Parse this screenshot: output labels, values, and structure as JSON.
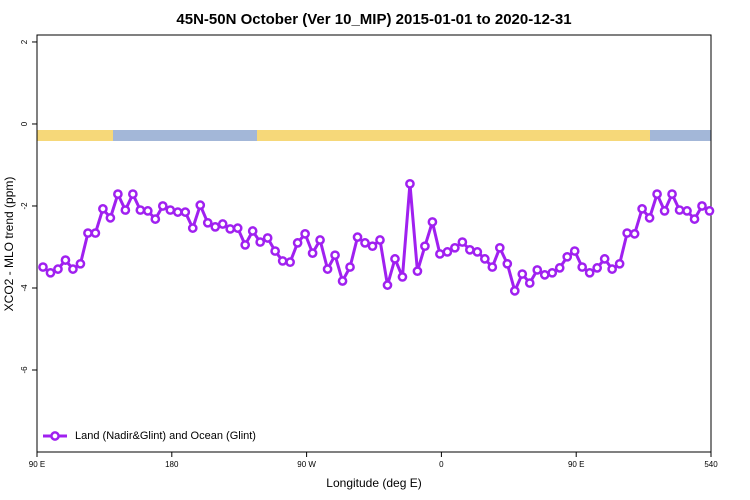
{
  "chart_data": {
    "type": "line",
    "title": "45N-50N October (Ver 10_MIP)   2015-01-01 to 2020-12-31",
    "x_label": "Longitude (deg E)",
    "y_label": "XCO2 - MLO trend (ppm)",
    "x": [
      94,
      99,
      104,
      109,
      114,
      119,
      124,
      129,
      134,
      139,
      144,
      149,
      154,
      159,
      164,
      169,
      174,
      179,
      184,
      189,
      194,
      199,
      204,
      209,
      214,
      219,
      224,
      229,
      234,
      239,
      244,
      249,
      254,
      259,
      264,
      269,
      274,
      279,
      284,
      289,
      294,
      299,
      304,
      309,
      314,
      319,
      324,
      329,
      334,
      339,
      344,
      349,
      354,
      359,
      364,
      369,
      374,
      379,
      384,
      389,
      394,
      399,
      404,
      409,
      414,
      419,
      424,
      429,
      434,
      439,
      444,
      449,
      454,
      459,
      464,
      469,
      474,
      479,
      484,
      489,
      494,
      499,
      504,
      509,
      514,
      519,
      524,
      529,
      534,
      539
    ],
    "series": [
      {
        "name": "Land (Nadir&Glint) and Ocean (Glint)",
        "color": "#a020f0",
        "values": [
          -3.49,
          -3.63,
          -3.54,
          -3.32,
          -3.54,
          -3.41,
          -2.66,
          -2.66,
          -2.07,
          -2.29,
          -1.71,
          -2.1,
          -1.71,
          -2.1,
          -2.12,
          -2.32,
          -2.0,
          -2.1,
          -2.15,
          -2.15,
          -2.54,
          -1.98,
          -2.41,
          -2.51,
          -2.44,
          -2.56,
          -2.54,
          -2.95,
          -2.61,
          -2.88,
          -2.78,
          -3.1,
          -3.34,
          -3.37,
          -2.9,
          -2.68,
          -3.15,
          -2.83,
          -3.54,
          -3.2,
          -3.83,
          -3.49,
          -2.76,
          -2.9,
          -2.98,
          -2.83,
          -3.93,
          -3.29,
          -3.73,
          -1.46,
          -3.59,
          -2.98,
          -2.39,
          -3.17,
          -3.12,
          -3.02,
          -2.88,
          -3.07,
          -3.12,
          -3.29,
          -3.49,
          -3.02,
          -3.41,
          -4.07,
          -3.66,
          -3.88,
          -3.56,
          -3.68,
          -3.63,
          -3.51,
          -3.24,
          -3.1,
          -3.49,
          -3.63,
          -3.51,
          -3.29,
          -3.54,
          -3.41,
          -2.66,
          -2.68,
          -2.07,
          -2.29,
          -1.71,
          -2.12,
          -1.71,
          -2.1,
          -2.12,
          -2.32,
          -2.0,
          -2.12
        ]
      }
    ],
    "xlim": [
      90,
      540
    ],
    "xticks": [
      {
        "value": 90,
        "label": "90 E"
      },
      180,
      {
        "value": 270,
        "label": "90 W"
      },
      {
        "value": 360,
        "label": "0"
      },
      {
        "value": 450,
        "label": "90 E"
      },
      540
    ],
    "ylim": [
      -8,
      2.17
    ],
    "yticks": [
      2,
      0,
      -2,
      -4,
      -6
    ],
    "legend_position": "bottom-left"
  }
}
